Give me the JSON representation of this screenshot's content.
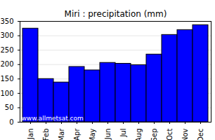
{
  "chart_data": {
    "type": "bar",
    "title": "Miri : precipitation (mm)",
    "categories": [
      "Jan",
      "Feb",
      "Mar",
      "Apr",
      "May",
      "Jun",
      "Jul",
      "Aug",
      "Sep",
      "Oct",
      "Nov",
      "Dec"
    ],
    "values": [
      325,
      150,
      138,
      192,
      180,
      206,
      203,
      198,
      235,
      303,
      320,
      337
    ],
    "color": "#0000ff",
    "ylim": [
      0,
      350
    ],
    "yticks": [
      0,
      50,
      100,
      150,
      200,
      250,
      300,
      350
    ],
    "grid": true,
    "annotations": [
      "www.allmetsat.com"
    ]
  }
}
